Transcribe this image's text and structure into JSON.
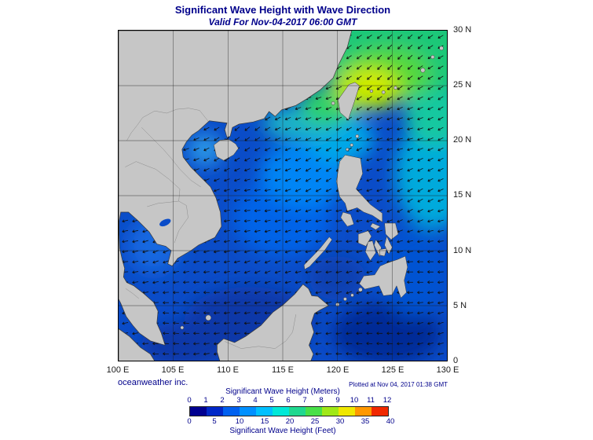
{
  "header": {
    "title": "Significant Wave Height with Wave Direction",
    "subtitle": "Valid For Nov-04-2017 06:00 GMT"
  },
  "axes": {
    "lat": [
      "30 N",
      "25 N",
      "20 N",
      "15 N",
      "10 N",
      "5 N",
      "0"
    ],
    "lon": [
      "100 E",
      "105 E",
      "110 E",
      "115 E",
      "120 E",
      "125 E",
      "130 E"
    ]
  },
  "footer": {
    "credit": "oceanweather inc.",
    "plotted": "Plotted at Nov 04, 2017 01:38 GMT"
  },
  "legend": {
    "meters_label": "Significant Wave Height (Meters)",
    "meters_ticks": [
      "0",
      "1",
      "2",
      "3",
      "4",
      "5",
      "6",
      "7",
      "8",
      "9",
      "10",
      "11",
      "12"
    ],
    "feet_label": "Significant Wave Height (Feet)",
    "feet_ticks": [
      "0",
      "5",
      "10",
      "15",
      "20",
      "25",
      "30",
      "35",
      "40"
    ],
    "bar_colors": [
      "#000090",
      "#0028c8",
      "#0060f0",
      "#0090ff",
      "#00c0ff",
      "#00e8d8",
      "#20d890",
      "#48e048",
      "#a0e818",
      "#f0e800",
      "#ff9800",
      "#f02800"
    ]
  },
  "colors": {
    "text_navy": "#00008b",
    "land_gray": "#c6c6c6",
    "ocean_base": "#0a4cc8"
  }
}
